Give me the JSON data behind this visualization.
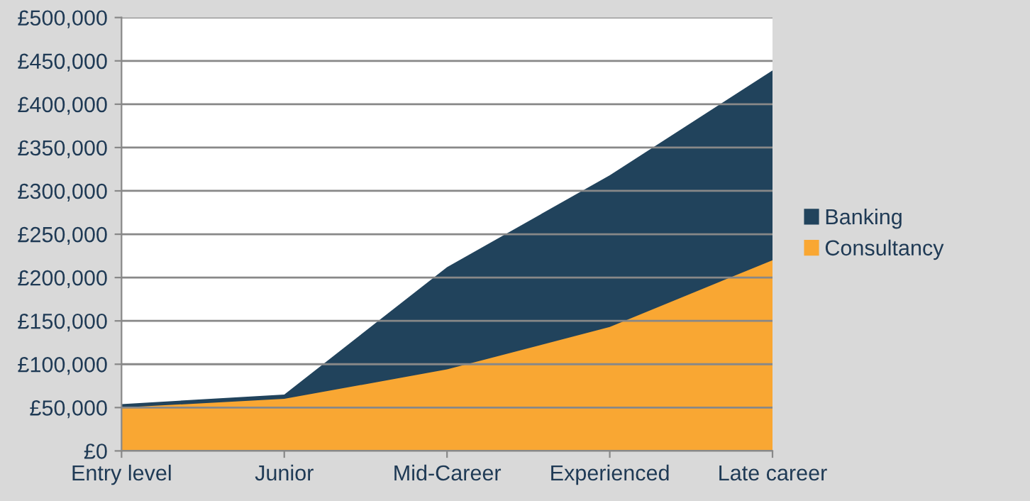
{
  "chart_data": {
    "type": "area",
    "categories": [
      "Entry level",
      "Junior",
      "Mid-Career",
      "Experienced",
      "Late career"
    ],
    "series": [
      {
        "name": "Banking",
        "color": "#21435c",
        "values": [
          54000,
          65000,
          212000,
          318000,
          439000
        ]
      },
      {
        "name": "Consultancy",
        "color": "#f9a733",
        "values": [
          50000,
          60000,
          94000,
          143000,
          220000
        ]
      }
    ],
    "ylim": [
      0,
      500000
    ],
    "yticks": [
      {
        "value": 0,
        "label": "£0"
      },
      {
        "value": 50000,
        "label": "£50,000"
      },
      {
        "value": 100000,
        "label": "£100,000"
      },
      {
        "value": 150000,
        "label": "£150,000"
      },
      {
        "value": 200000,
        "label": "£200,000"
      },
      {
        "value": 250000,
        "label": "£250,000"
      },
      {
        "value": 300000,
        "label": "£300,000"
      },
      {
        "value": 350000,
        "label": "£350,000"
      },
      {
        "value": 400000,
        "label": "£400,000"
      },
      {
        "value": 450000,
        "label": "£450,000"
      },
      {
        "value": 500000,
        "label": "£500,000"
      }
    ],
    "grid": "y",
    "legend": "right"
  }
}
